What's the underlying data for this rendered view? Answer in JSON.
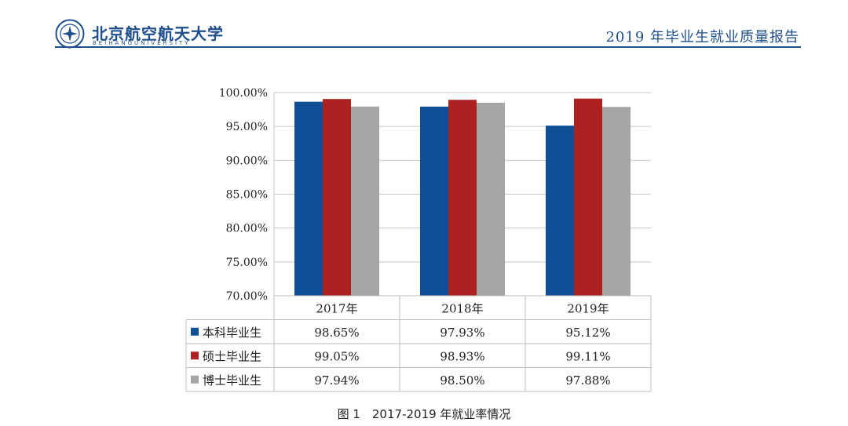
{
  "header": {
    "university_name": "北京航空航天大学",
    "university_name_en": "BEIHANGUNIVERSITY",
    "report_title": "2019 年毕业生就业质量报告"
  },
  "colors": {
    "brand": "#1f4e8c",
    "series": [
      "#0e4f96",
      "#ad2220",
      "#a5a5a5"
    ]
  },
  "chart_data": {
    "type": "bar",
    "categories": [
      "2017年",
      "2018年",
      "2019年"
    ],
    "series": [
      {
        "name": "本科毕业生",
        "values": [
          98.65,
          97.93,
          95.12
        ],
        "labels": [
          "98.65%",
          "97.93%",
          "95.12%"
        ]
      },
      {
        "name": "硕士毕业生",
        "values": [
          99.05,
          98.93,
          99.11
        ],
        "labels": [
          "99.05%",
          "98.93%",
          "99.11%"
        ]
      },
      {
        "name": "博士毕业生",
        "values": [
          97.94,
          98.5,
          97.88
        ],
        "labels": [
          "97.94%",
          "98.50%",
          "97.88%"
        ]
      }
    ],
    "ylim": [
      70,
      100
    ],
    "yticks": [
      70,
      75,
      80,
      85,
      90,
      95,
      100
    ],
    "ytick_labels": [
      "70.00%",
      "75.00%",
      "80.00%",
      "85.00%",
      "90.00%",
      "95.00%",
      "100.00%"
    ],
    "grid": true,
    "legend": "data-table",
    "title": ""
  },
  "caption": "图 1　2017-2019 年就业率情况"
}
